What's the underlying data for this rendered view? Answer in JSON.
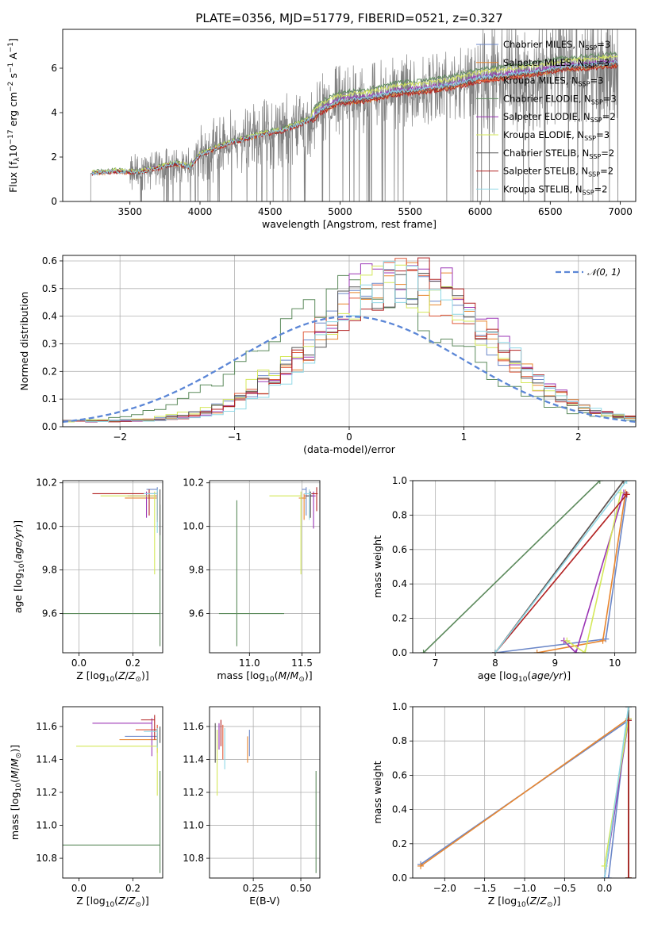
{
  "figure": {
    "title": "PLATE=0356, MJD=51779, FIBERID=0521, z=0.327",
    "legend_series": [
      {
        "name": "Chabrier MILES, N_SSP=3",
        "base": "Chabrier MILES, N",
        "sub": "SSP",
        "suffix": "=3",
        "color": "#6b87c8",
        "lw": 1.0
      },
      {
        "name": "Salpeter MILES, N_SSP=3",
        "base": "Salpeter MILES, N",
        "sub": "SSP",
        "suffix": "=3",
        "color": "#e8862f",
        "lw": 1.0
      },
      {
        "name": "Kroupa MILES, N_SSP=3",
        "base": "Kroupa MILES, N",
        "sub": "SSP",
        "suffix": "=3",
        "color": "#e05a3a",
        "lw": 1.0
      },
      {
        "name": "Chabrier ELODIE, N_SSP=3",
        "base": "Chabrier ELODIE, N",
        "sub": "SSP",
        "suffix": "=3",
        "color": "#5c8a5c",
        "lw": 1.0
      },
      {
        "name": "Salpeter ELODIE, N_SSP=2",
        "base": "Salpeter ELODIE, N",
        "sub": "SSP",
        "suffix": "=2",
        "color": "#9b35b5",
        "lw": 1.0
      },
      {
        "name": "Kroupa ELODIE, N_SSP=3",
        "base": "Kroupa ELODIE, N",
        "sub": "SSP",
        "suffix": "=3",
        "color": "#d4e85a",
        "lw": 1.0
      },
      {
        "name": "Chabrier STELIB, N_SSP=2",
        "base": "Chabrier STELIB, N",
        "sub": "SSP",
        "suffix": "=2",
        "color": "#555555",
        "lw": 0.8
      },
      {
        "name": "Salpeter STELIB, N_SSP=2",
        "base": "Salpeter STELIB, N",
        "sub": "SSP",
        "suffix": "=2",
        "color": "#b22222",
        "lw": 1.0
      },
      {
        "name": "Kroupa STELIB, N_SSP=2",
        "base": "Kroupa STELIB, N",
        "sub": "SSP",
        "suffix": "=2",
        "color": "#8fd8e6",
        "lw": 1.0
      }
    ]
  },
  "chart_data": [
    {
      "id": "spectrum",
      "type": "line",
      "xlabel": "wavelength [Angstrom, rest frame]",
      "ylabel": "Flux [f_λ 10^-17 erg cm^-2 s^-1 A^-1]",
      "xlim": [
        3020,
        7110
      ],
      "ylim": [
        0,
        7.75
      ],
      "xticks": [
        3500,
        4000,
        4500,
        5000,
        5500,
        6000,
        6500,
        7000
      ],
      "yticks": [
        0,
        2,
        4,
        6
      ],
      "grid": false,
      "legend": "top-right",
      "data_color": "#808080",
      "continuum_knots": [
        [
          3220,
          1.25
        ],
        [
          3400,
          1.35
        ],
        [
          3550,
          1.3
        ],
        [
          3700,
          1.5
        ],
        [
          3820,
          1.7
        ],
        [
          3930,
          1.55
        ],
        [
          4000,
          2.1
        ],
        [
          4200,
          2.6
        ],
        [
          4400,
          2.95
        ],
        [
          4600,
          3.2
        ],
        [
          4800,
          3.7
        ],
        [
          4870,
          4.1
        ],
        [
          5000,
          4.5
        ],
        [
          5200,
          4.6
        ],
        [
          5400,
          4.9
        ],
        [
          5600,
          5.0
        ],
        [
          5800,
          5.2
        ],
        [
          6000,
          5.5
        ],
        [
          6200,
          5.65
        ],
        [
          6400,
          5.8
        ],
        [
          6600,
          6.0
        ],
        [
          6800,
          6.1
        ],
        [
          6980,
          6.2
        ]
      ],
      "data_start": 3220,
      "data_end": 6985
    },
    {
      "id": "residuals",
      "type": "histogram",
      "xlabel": "(data-model)/error",
      "ylabel": "Normed distribution",
      "xlim": [
        -2.5,
        2.5
      ],
      "ylim": [
        0,
        0.62
      ],
      "xticks": [
        -2,
        -1,
        0,
        1,
        2
      ],
      "yticks": [
        0.0,
        0.1,
        0.2,
        0.3,
        0.4,
        0.5,
        0.6
      ],
      "grid": true,
      "legend": "top-right",
      "legend_label": "N(0,1)",
      "gauss_color": "#5b86d6",
      "bin_width": 0.1,
      "series": [
        {
          "center": 0.45,
          "sigma": 0.75,
          "peak": 0.5
        },
        {
          "center": 0.5,
          "sigma": 0.72,
          "peak": 0.52
        },
        {
          "center": 0.45,
          "sigma": 0.74,
          "peak": 0.5
        },
        {
          "center": 0.1,
          "sigma": 0.8,
          "peak": 0.48
        },
        {
          "center": 0.5,
          "sigma": 0.72,
          "peak": 0.55
        },
        {
          "center": 0.4,
          "sigma": 0.76,
          "peak": 0.5
        },
        {
          "center": 0.45,
          "sigma": 0.74,
          "peak": 0.5
        },
        {
          "center": 0.5,
          "sigma": 0.72,
          "peak": 0.52
        },
        {
          "center": 0.55,
          "sigma": 0.7,
          "peak": 0.52
        }
      ]
    },
    {
      "id": "age_vs_Z",
      "type": "errorbar",
      "xlabel": "Z [log10(Z/Zsun)]",
      "ylabel": "age [log10(age/yr)]",
      "xlim": [
        -0.06,
        0.31
      ],
      "ylim": [
        9.42,
        10.21
      ],
      "xticks": [
        0.0,
        0.2
      ],
      "yticks": [
        9.6,
        9.8,
        10.0,
        10.2
      ],
      "points": [
        {
          "s": 0,
          "x": 0.29,
          "y": 10.17,
          "xerr": [
            0.04,
            0.0
          ],
          "yerr": [
            0.12,
            0.01
          ]
        },
        {
          "s": 1,
          "x": 0.29,
          "y": 10.13,
          "xerr": [
            0.12,
            0.0
          ],
          "yerr": [
            0.1,
            0.02
          ]
        },
        {
          "s": 2,
          "x": 0.29,
          "y": 10.14,
          "xerr": [
            0.1,
            0.0
          ],
          "yerr": [
            0.12,
            0.02
          ]
        },
        {
          "s": 3,
          "x": 0.3,
          "y": 9.6,
          "xerr": [
            0.36,
            0.0
          ],
          "yerr": [
            0.15,
            0.5
          ]
        },
        {
          "s": 4,
          "x": 0.25,
          "y": 10.14,
          "xerr": [
            0.07,
            0.03
          ],
          "yerr": [
            0.1,
            0.02
          ]
        },
        {
          "s": 5,
          "x": 0.28,
          "y": 10.14,
          "xerr": [
            0.2,
            0.0
          ],
          "yerr": [
            0.36,
            0.02
          ]
        },
        {
          "s": 6,
          "x": 0.3,
          "y": 10.14,
          "xerr": [
            0.0,
            0.0
          ],
          "yerr": [
            0.18,
            0.03
          ]
        },
        {
          "s": 7,
          "x": 0.26,
          "y": 10.15,
          "xerr": [
            0.21,
            0.03
          ],
          "yerr": [
            0.1,
            0.02
          ]
        },
        {
          "s": 8,
          "x": 0.29,
          "y": 10.15,
          "xerr": [
            0.05,
            0.0
          ],
          "yerr": [
            0.18,
            0.02
          ]
        }
      ]
    },
    {
      "id": "age_vs_mass",
      "type": "errorbar",
      "xlabel": "mass [log10(M/Msun)]",
      "ylabel": "",
      "xlim": [
        10.62,
        11.67
      ],
      "ylim": [
        9.42,
        10.21
      ],
      "xticks": [
        11.0,
        11.5
      ],
      "yticks": [
        9.6,
        9.8,
        10.0,
        10.2
      ],
      "points": [
        {
          "s": 0,
          "x": 11.54,
          "y": 10.17,
          "xerr": [
            0.04,
            0.0
          ],
          "yerr": [
            0.12,
            0.01
          ]
        },
        {
          "s": 1,
          "x": 11.52,
          "y": 10.13,
          "xerr": [
            0.05,
            0.02
          ],
          "yerr": [
            0.1,
            0.02
          ]
        },
        {
          "s": 2,
          "x": 11.58,
          "y": 10.14,
          "xerr": [
            0.06,
            0.02
          ],
          "yerr": [
            0.1,
            0.02
          ]
        },
        {
          "s": 3,
          "x": 10.88,
          "y": 9.6,
          "xerr": [
            0.17,
            0.45
          ],
          "yerr": [
            0.15,
            0.52
          ]
        },
        {
          "s": 4,
          "x": 11.61,
          "y": 10.14,
          "xerr": [
            0.05,
            0.02
          ],
          "yerr": [
            0.15,
            0.02
          ]
        },
        {
          "s": 5,
          "x": 11.49,
          "y": 10.14,
          "xerr": [
            0.3,
            0.0
          ],
          "yerr": [
            0.36,
            0.02
          ]
        },
        {
          "s": 6,
          "x": 11.58,
          "y": 10.14,
          "xerr": [
            0.04,
            0.02
          ],
          "yerr": [
            0.1,
            0.02
          ]
        },
        {
          "s": 7,
          "x": 11.64,
          "y": 10.15,
          "xerr": [
            0.08,
            0.01
          ],
          "yerr": [
            0.08,
            0.03
          ]
        },
        {
          "s": 8,
          "x": 11.57,
          "y": 10.15,
          "xerr": [
            0.05,
            0.02
          ],
          "yerr": [
            0.12,
            0.02
          ]
        }
      ]
    },
    {
      "id": "weight_vs_age",
      "type": "line",
      "xlabel": "age [log10(age/yr)]",
      "ylabel": "mass weight",
      "xlim": [
        6.62,
        10.35
      ],
      "ylim": [
        0,
        1.0
      ],
      "xticks": [
        7,
        8,
        9,
        10
      ],
      "yticks": [
        0.0,
        0.2,
        0.4,
        0.6,
        0.8,
        1.0
      ],
      "grid": true,
      "series": [
        {
          "s": 0,
          "x": [
            8.0,
            9.85,
            10.2
          ],
          "y": [
            0.0,
            0.08,
            0.92
          ]
        },
        {
          "s": 1,
          "x": [
            8.7,
            9.8,
            10.18
          ],
          "y": [
            0.0,
            0.07,
            0.93
          ]
        },
        {
          "s": 2,
          "x": [
            8.0,
            10.15
          ],
          "y": [
            0.0,
            1.0
          ]
        },
        {
          "s": 3,
          "x": [
            6.8,
            9.75
          ],
          "y": [
            0.0,
            1.0
          ]
        },
        {
          "s": 4,
          "x": [
            9.15,
            9.35,
            10.15
          ],
          "y": [
            0.07,
            0.0,
            0.93
          ]
        },
        {
          "s": 5,
          "x": [
            9.2,
            9.5,
            10.1
          ],
          "y": [
            0.07,
            0.0,
            0.93
          ]
        },
        {
          "s": 6,
          "x": [
            8.0,
            10.15
          ],
          "y": [
            0.0,
            1.0
          ]
        },
        {
          "s": 7,
          "x": [
            8.0,
            10.2
          ],
          "y": [
            0.0,
            0.92
          ]
        },
        {
          "s": 8,
          "x": [
            8.0,
            10.2
          ],
          "y": [
            0.0,
            1.0
          ]
        }
      ]
    },
    {
      "id": "mass_vs_Z",
      "type": "errorbar",
      "xlabel": "Z [log10(Z/Zsun)]",
      "ylabel": "mass [log10(M/Msun)]",
      "xlim": [
        -0.06,
        0.31
      ],
      "ylim": [
        10.68,
        11.72
      ],
      "xticks": [
        0.0,
        0.2
      ],
      "yticks": [
        10.8,
        11.0,
        11.2,
        11.4,
        11.6
      ],
      "points": [
        {
          "s": 0,
          "x": 0.29,
          "y": 11.54,
          "xerr": [
            0.12,
            0.0
          ],
          "yerr": [
            0.05,
            0.02
          ]
        },
        {
          "s": 1,
          "x": 0.29,
          "y": 11.52,
          "xerr": [
            0.14,
            0.0
          ],
          "yerr": [
            0.08,
            0.02
          ]
        },
        {
          "s": 2,
          "x": 0.29,
          "y": 11.58,
          "xerr": [
            0.08,
            0.0
          ],
          "yerr": [
            0.1,
            0.03
          ]
        },
        {
          "s": 3,
          "x": 0.3,
          "y": 10.88,
          "xerr": [
            0.36,
            0.0
          ],
          "yerr": [
            0.17,
            0.45
          ]
        },
        {
          "s": 4,
          "x": 0.27,
          "y": 11.62,
          "xerr": [
            0.22,
            0.0
          ],
          "yerr": [
            0.2,
            0.03
          ]
        },
        {
          "s": 5,
          "x": 0.29,
          "y": 11.48,
          "xerr": [
            0.3,
            0.0
          ],
          "yerr": [
            0.3,
            0.0
          ]
        },
        {
          "s": 6,
          "x": 0.3,
          "y": 11.58,
          "xerr": [
            0.0,
            0.0
          ],
          "yerr": [
            0.08,
            0.02
          ]
        },
        {
          "s": 7,
          "x": 0.28,
          "y": 11.64,
          "xerr": [
            0.05,
            0.0
          ],
          "yerr": [
            0.12,
            0.03
          ]
        },
        {
          "s": 8,
          "x": 0.29,
          "y": 11.57,
          "xerr": [
            0.05,
            0.0
          ],
          "yerr": [
            0.1,
            0.02
          ]
        }
      ]
    },
    {
      "id": "mass_vs_EBV",
      "type": "errorbar",
      "xlabel": "E(B-V)",
      "ylabel": "",
      "xlim": [
        0.02,
        0.6
      ],
      "ylim": [
        10.68,
        11.72
      ],
      "xticks": [
        0.25,
        0.5
      ],
      "yticks": [
        10.8,
        11.0,
        11.2,
        11.4,
        11.6
      ],
      "points": [
        {
          "s": 0,
          "x": 0.23,
          "y": 11.54,
          "xerr": [
            0.0,
            0.0
          ],
          "yerr": [
            0.12,
            0.04
          ]
        },
        {
          "s": 1,
          "x": 0.22,
          "y": 11.52,
          "xerr": [
            0.0,
            0.0
          ],
          "yerr": [
            0.14,
            0.02
          ]
        },
        {
          "s": 2,
          "x": 0.09,
          "y": 11.58,
          "xerr": [
            0.0,
            0.0
          ],
          "yerr": [
            0.18,
            0.03
          ]
        },
        {
          "s": 3,
          "x": 0.58,
          "y": 10.88,
          "xerr": [
            0.0,
            0.0
          ],
          "yerr": [
            0.17,
            0.45
          ]
        },
        {
          "s": 4,
          "x": 0.07,
          "y": 11.62,
          "xerr": [
            0.0,
            0.0
          ],
          "yerr": [
            0.16,
            0.0
          ]
        },
        {
          "s": 5,
          "x": 0.06,
          "y": 11.48,
          "xerr": [
            0.0,
            0.0
          ],
          "yerr": [
            0.3,
            0.1
          ]
        },
        {
          "s": 6,
          "x": 0.05,
          "y": 11.58,
          "xerr": [
            0.0,
            0.0
          ],
          "yerr": [
            0.2,
            0.04
          ]
        },
        {
          "s": 7,
          "x": 0.08,
          "y": 11.64,
          "xerr": [
            0.0,
            0.0
          ],
          "yerr": [
            0.16,
            0.0
          ]
        },
        {
          "s": 8,
          "x": 0.1,
          "y": 11.57,
          "xerr": [
            0.0,
            0.0
          ],
          "yerr": [
            0.23,
            0.02
          ]
        }
      ]
    },
    {
      "id": "weight_vs_Z",
      "type": "line",
      "xlabel": "Z [log10(Z/Zsun)]",
      "ylabel": "mass weight",
      "xlim": [
        -2.4,
        0.39
      ],
      "ylim": [
        0,
        1.0
      ],
      "xticks": [
        -2.0,
        -1.5,
        -1.0,
        -0.5,
        0.0
      ],
      "yticks": [
        0.0,
        0.2,
        0.4,
        0.6,
        0.8,
        1.0
      ],
      "grid": true,
      "series": [
        {
          "s": 0,
          "x": [
            -2.3,
            0.3,
            0.0,
            0.05,
            0.3
          ],
          "y": [
            0.08,
            0.92,
            0.0,
            0.0,
            1.0
          ]
        },
        {
          "s": 1,
          "x": [
            -2.3,
            0.3,
            0.3
          ],
          "y": [
            0.07,
            0.93,
            0.0
          ]
        },
        {
          "s": 2,
          "x": [
            0.3,
            0.3
          ],
          "y": [
            0.0,
            1.0
          ]
        },
        {
          "s": 3,
          "x": [
            0.3,
            0.3
          ],
          "y": [
            0.0,
            1.0
          ]
        },
        {
          "s": 4,
          "x": [
            0.0,
            0.3
          ],
          "y": [
            0.0,
            0.93
          ]
        },
        {
          "s": 5,
          "x": [
            0.0,
            0.3
          ],
          "y": [
            0.07,
            0.93
          ]
        },
        {
          "s": 6,
          "x": [
            0.3,
            0.3
          ],
          "y": [
            0.0,
            1.0
          ]
        },
        {
          "s": 7,
          "x": [
            0.3,
            0.3
          ],
          "y": [
            0.0,
            0.92
          ]
        },
        {
          "s": 8,
          "x": [
            0.0,
            0.3
          ],
          "y": [
            0.0,
            1.0
          ]
        }
      ]
    }
  ]
}
